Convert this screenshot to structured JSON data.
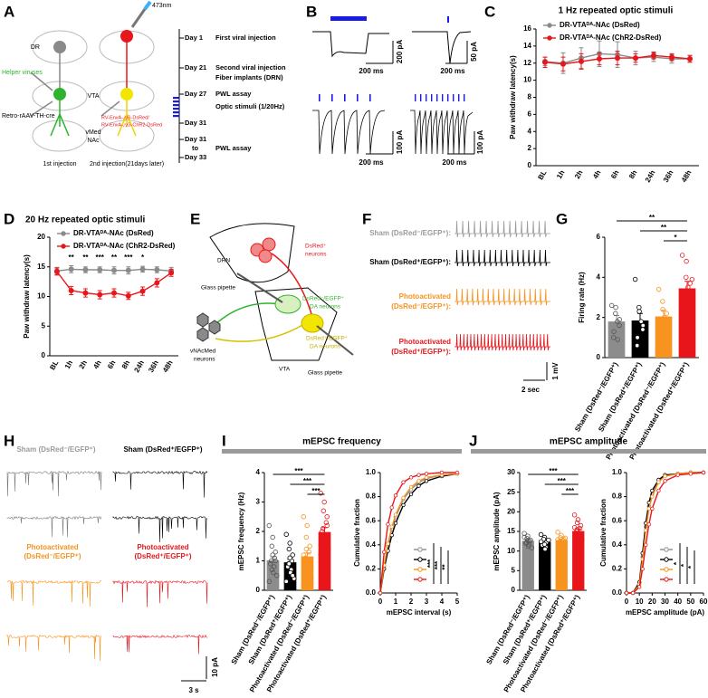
{
  "figure": {
    "panel_letters": [
      "A",
      "B",
      "C",
      "D",
      "E",
      "F",
      "G",
      "H",
      "I",
      "J"
    ],
    "panel_a": {
      "labels": [
        "DR",
        "473nm",
        "Helper viruses",
        "VTA",
        "Retro-rAAV-TH-cre",
        "vMed",
        "NAc",
        "1st injection",
        "2nd injection(21days later)",
        "RV-EnvA-△G-DsRed/",
        "RV-EnvA-△G-ChR2-DsRed"
      ],
      "timeline": [
        "Day 1",
        "First viral injection",
        "Day 21",
        "Second viral injection",
        "Fiber implants (DRN)",
        "Day 27",
        "PWL assay",
        "Optic stimuli (1/20Hz)",
        "Day 31",
        "Day 31",
        "to",
        "Day 33",
        "PWL assay"
      ]
    },
    "panel_b": {
      "scale_labels": [
        "200 pA",
        "200 ms",
        "50 pA",
        "200 ms",
        "100 pA",
        "200 ms",
        "100 pA",
        "200 ms"
      ]
    },
    "panel_e": {
      "labels": [
        "DRN",
        "DsRed⁺",
        "neurons",
        "Glass pipette",
        "DsRed⁻/EGFP⁺",
        "DA neurons",
        "vNAcMed",
        "neurons",
        "DsRed⁺/EGFP⁺",
        "DA neurons",
        "VTA",
        "Glass pipette"
      ]
    },
    "panel_f": {
      "labels": [
        "Sham (DsRed⁻/EGFP⁺):",
        "Sham (DsRed⁺/EGFP⁺):",
        "Photoactivated",
        "(DsRed⁻/EGFP⁺):",
        "Photoactivated",
        "(DsRed⁺/EGFP⁺):"
      ],
      "scale_labels": [
        "2 sec",
        "1 mV"
      ]
    },
    "panel_h": {
      "labels": [
        "Sham (DsRed⁻/EGFP⁺)",
        "Sham (DsRed⁺/EGFP⁺)",
        "Photoactivated",
        "(DsRed⁻/EGFP⁺)",
        "Photoactivated",
        "(DsRed⁺/EGFP⁺)"
      ],
      "scale_labels": [
        "10 pA",
        "3 s"
      ]
    }
  },
  "chart_data": [
    {
      "type": "line",
      "title": "1 Hz repeated optic stimuli",
      "y_label": "Paw withdraw latency(s)",
      "categories": [
        "BL",
        "1h",
        "2h",
        "4h",
        "6h",
        "8h",
        "24h",
        "36h",
        "48h"
      ],
      "series": [
        {
          "name": "DR-VTAᴰᴬ-NAc (DsRed)",
          "color": "#8a8a8a",
          "values": [
            12.2,
            12.0,
            12.6,
            13.1,
            13.0,
            12.6,
            12.7,
            12.5,
            12.5
          ],
          "errors": [
            0.5,
            1.2,
            1.2,
            1.5,
            1.5,
            0.8,
            0.5,
            0.5,
            0.4
          ]
        },
        {
          "name": "DR-VTAᴰᴬ-NAc (ChR2-DsRed)",
          "color": "#e8161b",
          "values": [
            12.1,
            11.9,
            12.2,
            12.5,
            12.6,
            12.6,
            12.9,
            12.7,
            12.5
          ],
          "errors": [
            0.6,
            0.8,
            0.9,
            0.7,
            0.8,
            0.5,
            0.4,
            0.4,
            0.4
          ]
        }
      ],
      "ylim": [
        0,
        16
      ],
      "yticks": [
        0,
        2,
        4,
        6,
        8,
        10,
        12,
        14,
        16
      ],
      "legend": "upper left",
      "markers": "filled"
    },
    {
      "type": "line",
      "title": "20 Hz repeated optic stimuli",
      "y_label": "Paw withdraw latency(s)",
      "categories": [
        "BL",
        "1h",
        "2h",
        "4h",
        "6h",
        "8h",
        "24h",
        "36h",
        "48h"
      ],
      "series": [
        {
          "name": "DR-VTAᴰᴬ-NAc (DsRed)",
          "color": "#8a8a8a",
          "values": [
            14.3,
            14.6,
            14.5,
            14.5,
            14.4,
            14.4,
            14.6,
            14.5,
            14.3
          ],
          "errors": [
            0.6,
            0.6,
            0.5,
            0.5,
            0.6,
            0.6,
            0.5,
            0.5,
            0.6
          ]
        },
        {
          "name": "DR-VTAᴰᴬ-NAc (ChR2-DsRed)",
          "color": "#e8161b",
          "values": [
            14.2,
            11.0,
            10.6,
            10.3,
            10.6,
            10.1,
            10.9,
            12.3,
            14.0
          ],
          "errors": [
            0.6,
            0.7,
            0.7,
            0.7,
            0.7,
            0.6,
            0.7,
            0.7,
            0.6
          ]
        }
      ],
      "ylim": [
        0,
        20
      ],
      "yticks": [
        0,
        5,
        10,
        15,
        20
      ],
      "legend": "upper left",
      "markers": "filled",
      "annotations": [
        null,
        "**",
        "**",
        "***",
        "**",
        "***",
        "*",
        null,
        null
      ]
    },
    {
      "type": "bar",
      "y_label": "Firing rate (Hz)",
      "categories": [
        "Sham (DsRed⁻/EGFP⁺)",
        "Sham (DsRed⁺/EGFP⁺)",
        "Photoactivated (DsRed⁻/EGFP⁺)",
        "Photoactivated (DsRed⁺/EGFP⁺)"
      ],
      "values": [
        1.8,
        1.85,
        2.05,
        3.45
      ],
      "errors": [
        0.3,
        0.35,
        0.3,
        0.35
      ],
      "colors": [
        "#8c8c8c",
        "#000000",
        "#f7931e",
        "#e8161b"
      ],
      "points": [
        [
          2.6,
          2.5,
          2.2,
          1.9,
          1.6,
          1.3,
          1.0,
          0.9,
          1.8
        ],
        [
          3.9,
          2.3,
          2.5,
          1.6,
          1.4,
          1.0,
          0.6,
          1.8
        ],
        [
          3.4,
          2.4,
          2.8,
          2.2,
          1.9,
          1.3,
          0.7,
          0.9,
          2.0
        ],
        [
          5.1,
          4.8,
          4.0,
          3.7,
          3.3,
          3.0,
          2.5,
          2.2,
          3.5,
          3.9
        ]
      ],
      "ylim": [
        0,
        6
      ],
      "yticks": [
        0,
        2,
        4,
        6
      ],
      "annotations": [
        "**",
        "**",
        "*"
      ]
    },
    {
      "type": "bar",
      "title": "mEPSC frequency",
      "y_label": "mEPSC frequency (Hz)",
      "categories": [
        "Sham (DsRed⁻/EGFP⁺)",
        "Sham (DsRed⁺/EGFP⁺)",
        "Photoactivated (DsRed⁻/EGFP⁺)",
        "Photoactivated (DsRed⁺/EGFP⁺)"
      ],
      "values": [
        1.02,
        0.95,
        1.15,
        1.98
      ],
      "errors": [
        0.12,
        0.1,
        0.12,
        0.15
      ],
      "colors": [
        "#8c8c8c",
        "#000000",
        "#f7931e",
        "#e8161b"
      ],
      "points": [
        [
          2.2,
          1.8,
          1.5,
          1.3,
          1.1,
          1.0,
          0.9,
          0.8,
          0.6,
          0.5,
          0.3,
          1.2,
          0.7,
          1.0
        ],
        [
          1.9,
          1.6,
          1.4,
          1.2,
          1.0,
          0.9,
          0.8,
          0.7,
          0.6,
          0.4,
          0.3,
          1.1,
          0.9,
          0.5
        ],
        [
          2.5,
          2.2,
          1.8,
          1.5,
          1.3,
          1.1,
          1.0,
          0.8,
          0.6,
          0.4,
          1.2,
          0.9,
          1.4,
          0.7
        ],
        [
          3.3,
          3.0,
          2.7,
          2.5,
          2.3,
          2.1,
          2.0,
          1.8,
          1.6,
          1.4,
          1.2,
          1.0,
          0.8,
          2.2
        ]
      ],
      "ylim": [
        0,
        4
      ],
      "yticks": [
        0,
        1,
        2,
        3,
        4
      ],
      "annotations": [
        "***",
        "***",
        "***"
      ]
    },
    {
      "type": "line",
      "y_label": "Cumulative fraction",
      "x_label": "mEPSC interval (s)",
      "x": [
        0,
        0.25,
        0.5,
        0.75,
        1,
        1.5,
        2,
        2.5,
        3,
        4,
        5
      ],
      "series": [
        {
          "color": "#8c8c8c",
          "values": [
            0,
            0.22,
            0.39,
            0.53,
            0.63,
            0.78,
            0.86,
            0.92,
            0.95,
            0.98,
            0.99
          ]
        },
        {
          "color": "#000000",
          "values": [
            0,
            0.2,
            0.35,
            0.48,
            0.58,
            0.73,
            0.82,
            0.89,
            0.93,
            0.97,
            0.99
          ]
        },
        {
          "color": "#f7931e",
          "values": [
            0,
            0.23,
            0.41,
            0.55,
            0.65,
            0.79,
            0.88,
            0.93,
            0.96,
            0.98,
            0.99
          ]
        },
        {
          "color": "#e8161b",
          "values": [
            0,
            0.34,
            0.57,
            0.71,
            0.81,
            0.92,
            0.96,
            0.98,
            0.99,
            1,
            1
          ]
        }
      ],
      "xlim": [
        0,
        5
      ],
      "xticks": [
        0,
        1,
        2,
        3,
        4,
        5
      ],
      "ylim": [
        0,
        1
      ],
      "yticks": [
        {
          "value": 0,
          "label": "0.0"
        },
        0.2,
        0.4,
        0.6,
        0.8,
        {
          "value": 1,
          "label": "1.0"
        }
      ],
      "legend": "lower right",
      "markers": "open",
      "annotations": [
        "***",
        "***",
        "**"
      ]
    },
    {
      "type": "bar",
      "title": "mEPSC amplitude",
      "y_label": "mEPSC amplitude (pA)",
      "categories": [
        "Sham (DsRed⁻/EGFP⁺)",
        "Sham (DsRed⁺/EGFP⁺)",
        "Photoactivated (DsRed⁻/EGFP⁺)",
        "Photoactivated (DsRed⁺/EGFP⁺)"
      ],
      "values": [
        12.6,
        12.3,
        12.8,
        15.1
      ],
      "errors": [
        0.3,
        0.3,
        0.3,
        0.5
      ],
      "colors": [
        "#8c8c8c",
        "#000000",
        "#f7931e",
        "#e8161b"
      ],
      "points": [
        [
          14.5,
          13.8,
          13.2,
          12.8,
          12.5,
          12.2,
          12.0,
          11.6,
          11.2,
          10.8,
          13.5,
          12.6
        ],
        [
          14.2,
          13.5,
          13.0,
          12.6,
          12.2,
          11.9,
          11.5,
          11.0,
          10.5,
          12.8,
          12.4,
          11.7
        ],
        [
          14.8,
          14.0,
          13.4,
          13.0,
          12.7,
          12.4,
          12.1,
          11.6,
          11.0,
          13.3,
          12.9,
          12.2
        ],
        [
          19.2,
          18.0,
          17.2,
          16.5,
          15.8,
          15.2,
          14.6,
          14.0,
          13.4,
          12.8,
          16.0,
          14.3,
          15.5
        ]
      ],
      "ylim": [
        0,
        30
      ],
      "yticks": [
        0,
        5,
        10,
        15,
        20,
        25,
        30
      ],
      "annotations": [
        "***",
        "***",
        "***"
      ]
    },
    {
      "type": "line",
      "y_label": "Cumulative fraction",
      "x_label": "mEPSC amplitude (pA)",
      "x": [
        0,
        5,
        10,
        12.5,
        15,
        17.5,
        20,
        25,
        30,
        40,
        50,
        60
      ],
      "series": [
        {
          "color": "#8c8c8c",
          "values": [
            0,
            0,
            0.08,
            0.3,
            0.55,
            0.72,
            0.82,
            0.93,
            0.97,
            0.99,
            1,
            1
          ]
        },
        {
          "color": "#000000",
          "values": [
            0,
            0,
            0.09,
            0.33,
            0.58,
            0.75,
            0.85,
            0.94,
            0.98,
            0.99,
            1,
            1
          ]
        },
        {
          "color": "#f7931e",
          "values": [
            0,
            0,
            0.07,
            0.28,
            0.52,
            0.7,
            0.8,
            0.92,
            0.97,
            0.99,
            1,
            1
          ]
        },
        {
          "color": "#e8161b",
          "values": [
            0,
            0,
            0.05,
            0.2,
            0.4,
            0.57,
            0.7,
            0.85,
            0.93,
            0.98,
            0.99,
            1
          ]
        }
      ],
      "xlim": [
        0,
        60
      ],
      "xticks": [
        0,
        10,
        20,
        30,
        40,
        50,
        60
      ],
      "ylim": [
        0,
        1
      ],
      "yticks": [
        {
          "value": 0,
          "label": "0.0"
        },
        0.2,
        0.4,
        0.6,
        0.8,
        {
          "value": 1,
          "label": "1.0"
        }
      ],
      "legend": "lower right",
      "markers": "open",
      "annotations": [
        "*",
        "*",
        "*"
      ]
    }
  ]
}
